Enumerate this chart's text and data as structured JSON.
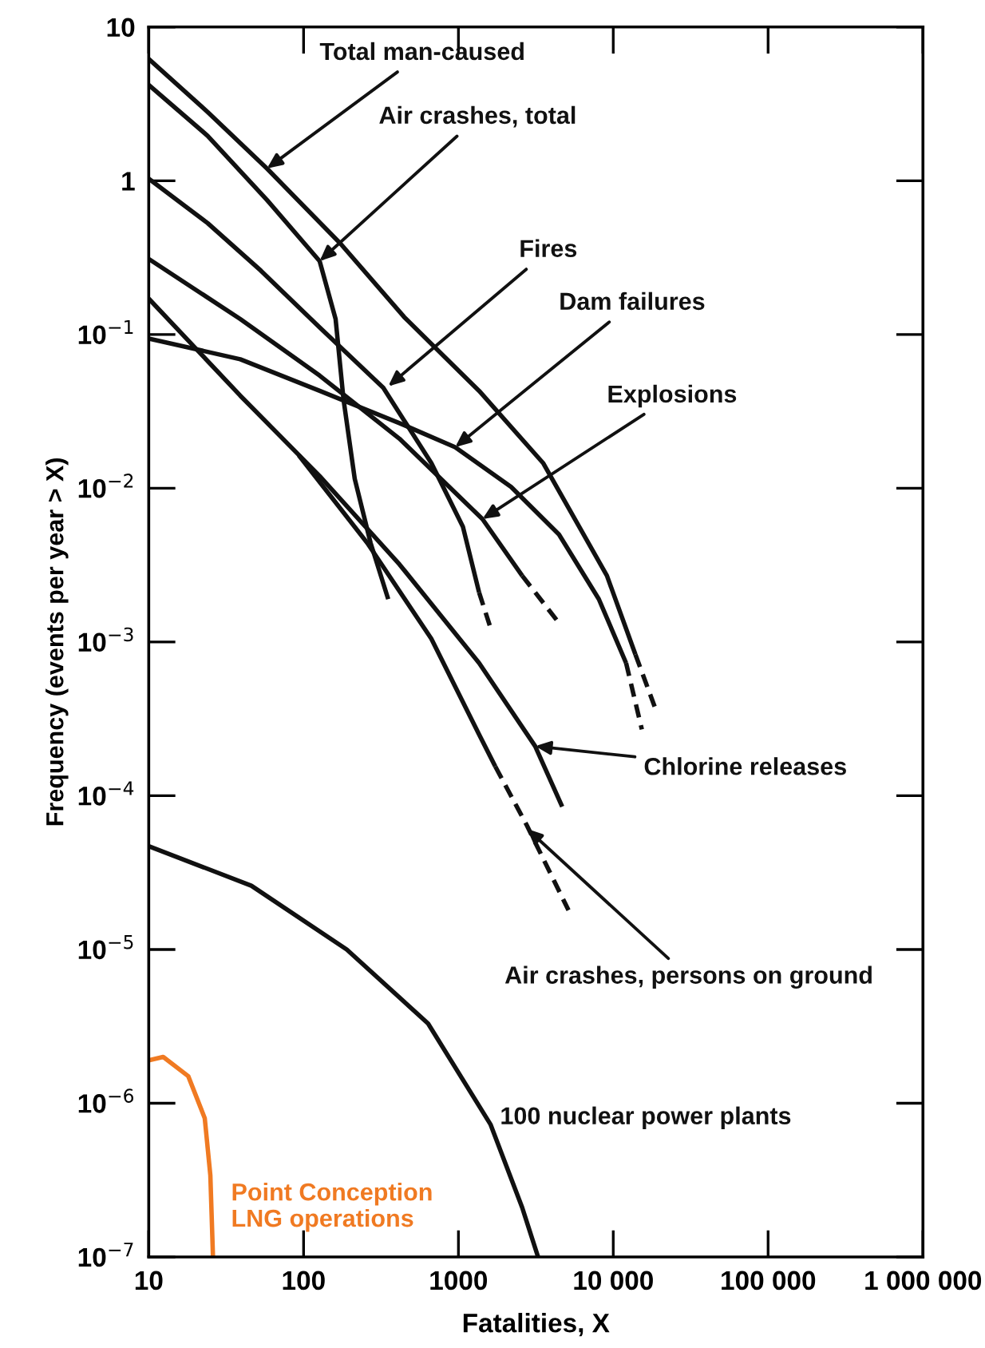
{
  "chart_data": {
    "type": "line",
    "xlabel": "Fatalities, X",
    "ylabel": "Frequency (events per year > X)",
    "log": "xy",
    "xlim": [
      10,
      1000000
    ],
    "ylim": [
      1e-07,
      10
    ],
    "xticks": [
      10,
      100,
      1000,
      {
        "value": 10000,
        "label": "10 000"
      },
      {
        "value": 100000,
        "label": "100 000"
      },
      {
        "value": 1000000,
        "label": "1 000 000"
      }
    ],
    "yticks": [
      {
        "value": 1e-07,
        "label": "10$^{−7}$"
      },
      {
        "value": 1e-06,
        "label": "10$^{−6}$"
      },
      {
        "value": 1e-05,
        "label": "10$^{−5}$"
      },
      {
        "value": 0.0001,
        "label": "10$^{−4}$"
      },
      {
        "value": 0.001,
        "label": "10$^{−3}$"
      },
      {
        "value": 0.01,
        "label": "10$^{−2}$"
      },
      {
        "value": 0.1,
        "label": "10$^{−1}$"
      },
      1,
      10
    ],
    "series": [
      {
        "color": "#111111",
        "line_style": "solid",
        "x": [
          10,
          24,
          58,
          173,
          446,
          1360,
          3520,
          9100,
          13900
        ],
        "values": [
          6.2,
          2.8,
          1.2,
          0.39,
          0.13,
          0.043,
          0.0146,
          0.0027,
          0.00083
        ]
      },
      {
        "color": "#111111",
        "line_style": "dashed",
        "x": [
          13900,
          18500
        ],
        "values": [
          0.00083,
          0.00038
        ]
      },
      {
        "color": "#111111",
        "line_style": "solid",
        "x": [
          10,
          24,
          58,
          127,
          161,
          181,
          214,
          271,
          352
        ],
        "values": [
          4.2,
          1.96,
          0.75,
          0.3,
          0.126,
          0.038,
          0.0115,
          0.0044,
          0.0019
        ]
      },
      {
        "color": "#111111",
        "line_style": "solid",
        "x": [
          10,
          24,
          53,
          127,
          327,
          668,
          1070,
          1360
        ],
        "values": [
          1.03,
          0.53,
          0.26,
          0.111,
          0.045,
          0.0146,
          0.0056,
          0.0021
        ]
      },
      {
        "color": "#111111",
        "line_style": "dashed",
        "x": [
          1360,
          1610
        ],
        "values": [
          0.0021,
          0.00124
        ]
      },
      {
        "color": "#111111",
        "line_style": "solid",
        "x": [
          10,
          39,
          127,
          416,
          953,
          2190,
          4460,
          8070,
          12100
        ],
        "values": [
          0.094,
          0.069,
          0.043,
          0.0265,
          0.0185,
          0.0102,
          0.005,
          0.0019,
          0.00073
        ]
      },
      {
        "color": "#111111",
        "line_style": "dashed",
        "x": [
          12100,
          15300
        ],
        "values": [
          0.00073,
          0.00027
        ]
      },
      {
        "color": "#111111",
        "line_style": "solid",
        "x": [
          10,
          39,
          127,
          416,
          1430,
          2580
        ],
        "values": [
          0.31,
          0.126,
          0.054,
          0.021,
          0.0063,
          0.0027
        ]
      },
      {
        "color": "#111111",
        "line_style": "dashed",
        "x": [
          2580,
          4460
        ],
        "values": [
          0.0027,
          0.00133
        ]
      },
      {
        "color": "#111111",
        "line_style": "solid",
        "x": [
          10,
          39,
          127,
          416,
          1360,
          3130,
          4680
        ],
        "values": [
          0.171,
          0.04,
          0.012,
          0.0032,
          0.00073,
          0.00021,
          8.5e-05
        ]
      },
      {
        "color": "#111111",
        "line_style": "solid",
        "x": [
          93,
          258,
          668,
          1360,
          1730
        ],
        "values": [
          0.0164,
          0.0044,
          0.00105,
          0.00025,
          0.000155
        ]
      },
      {
        "color": "#111111",
        "line_style": "dashed",
        "x": [
          1730,
          2770,
          5140
        ],
        "values": [
          0.000155,
          6.4e-05,
          1.8e-05
        ]
      },
      {
        "color": "#111111",
        "line_style": "solid",
        "x": [
          10,
          46,
          190,
          637,
          1610,
          2580,
          3270
        ],
        "values": [
          4.7e-05,
          2.6e-05,
          1e-05,
          3.3e-06,
          7.3e-07,
          2.1e-07,
          1e-07
        ]
      },
      {
        "color": "#f07a22",
        "line_style": "solid",
        "x": [
          10,
          12.4,
          18,
          23,
          25,
          26
        ],
        "values": [
          1.9e-06,
          2e-06,
          1.5e-06,
          8e-07,
          3.4e-07,
          1e-07
        ]
      }
    ],
    "annotations": [
      {
        "text": "Total man-caused",
        "x": 58,
        "y": 1.2
      },
      {
        "text": "Air crashes, total",
        "x": 127,
        "y": 0.3
      },
      {
        "text": "Fires",
        "x": 352,
        "y": 0.046
      },
      {
        "text": "Dam failures",
        "x": 953,
        "y": 0.0185
      },
      {
        "text": "Explosions",
        "x": 1430,
        "y": 0.0063
      },
      {
        "text": "Chlorine releases",
        "x": 3130,
        "y": 0.00021
      },
      {
        "text": "Air crashes, persons on ground",
        "x": 2770,
        "y": 6.1e-05
      },
      {
        "text": "100 nuclear power plants",
        "x": 1610,
        "y": 7.3e-07
      },
      {
        "text": "Point Conception\nLNG operations",
        "x": 25,
        "y": 3.4e-07
      }
    ]
  }
}
